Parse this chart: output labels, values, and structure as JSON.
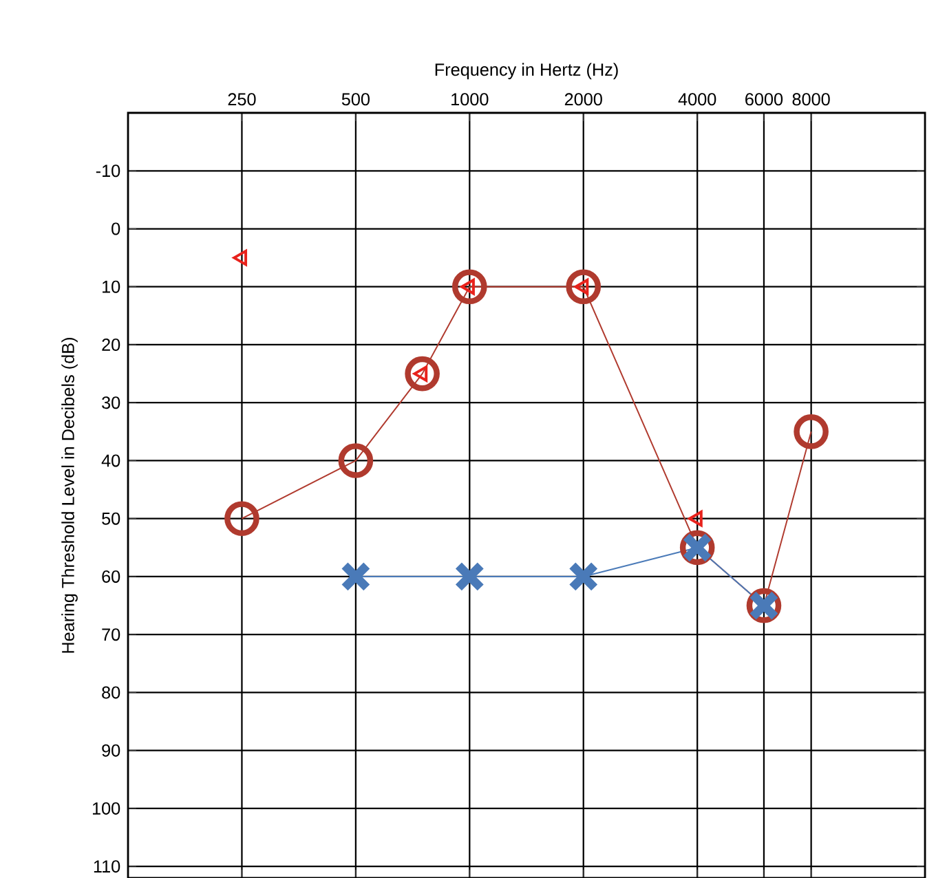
{
  "chart_data": {
    "type": "line",
    "xlabel": "Frequency in Hertz (Hz)",
    "ylabel": "Hearing Threshold Level in Decibels (dB)",
    "log": "x",
    "xlim": [
      125,
      16000
    ],
    "ylim": [
      112,
      -20
    ],
    "xticks": [
      250,
      500,
      1000,
      2000,
      4000,
      6000,
      8000
    ],
    "yticks": [
      -10,
      0,
      10,
      20,
      30,
      40,
      50,
      60,
      70,
      80,
      90,
      100,
      110
    ],
    "grid": true,
    "series": [
      {
        "color": "#b03a2e",
        "marker": "circle",
        "x": [
          250,
          500,
          750,
          1000,
          2000,
          4000,
          6000,
          8000
        ],
        "values": [
          50,
          40,
          25,
          10,
          10,
          55,
          65,
          35
        ]
      },
      {
        "type": "scatter",
        "color": "#e8221c",
        "marker": "triangle",
        "x": [
          250,
          750,
          1000,
          2000,
          4000
        ],
        "values": [
          5,
          25,
          10,
          10,
          50
        ]
      },
      {
        "color": "#4a7ab8",
        "marker": "cross",
        "x": [
          500,
          1000,
          2000,
          4000,
          6000
        ],
        "values": [
          60,
          60,
          60,
          55,
          65
        ]
      }
    ]
  }
}
